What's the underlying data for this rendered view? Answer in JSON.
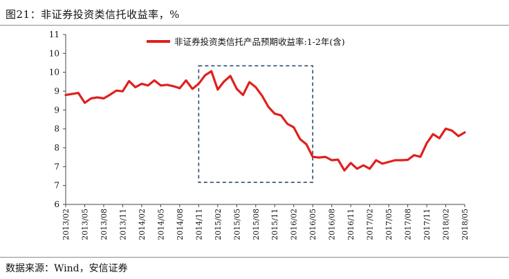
{
  "header": {
    "title": "图21：非证券投资类信托收益率，%"
  },
  "footer": {
    "source": "数据来源：Wind，安信证券"
  },
  "chart_data": {
    "type": "line",
    "title": "",
    "xlabel": "",
    "ylabel": "",
    "ylim": [
      6,
      11
    ],
    "y_tick_labels": [
      "6",
      "7",
      "7",
      "8",
      "8",
      "9",
      "9",
      "10",
      "10",
      "11"
    ],
    "x_tick_labels": [
      "2013/02",
      "2013/05",
      "2013/08",
      "2013/11",
      "2014/02",
      "2014/05",
      "2014/08",
      "2014/11",
      "2015/02",
      "2015/05",
      "2015/08",
      "2015/11",
      "2016/02",
      "2016/05",
      "2016/08",
      "2016/11",
      "2017/02",
      "2017/05",
      "2017/08",
      "2017/11",
      "2018/02",
      "2018/05"
    ],
    "legend_position": "top-center",
    "highlight_box": {
      "from": "2014/11",
      "to": "2016/05",
      "style": "dashed"
    },
    "series": [
      {
        "name": "非证券投资类信托产品预期收益率:1-2年(含)",
        "color": "#e0201d",
        "x": [
          "2013/02",
          "2013/03",
          "2013/04",
          "2013/05",
          "2013/06",
          "2013/07",
          "2013/08",
          "2013/09",
          "2013/10",
          "2013/11",
          "2013/12",
          "2014/01",
          "2014/02",
          "2014/03",
          "2014/04",
          "2014/05",
          "2014/06",
          "2014/07",
          "2014/08",
          "2014/09",
          "2014/10",
          "2014/11",
          "2014/12",
          "2015/01",
          "2015/02",
          "2015/03",
          "2015/04",
          "2015/05",
          "2015/06",
          "2015/07",
          "2015/08",
          "2015/09",
          "2015/10",
          "2015/11",
          "2015/12",
          "2016/01",
          "2016/02",
          "2016/03",
          "2016/04",
          "2016/05",
          "2016/06",
          "2016/07",
          "2016/08",
          "2016/09",
          "2016/10",
          "2016/11",
          "2016/12",
          "2017/01",
          "2017/02",
          "2017/03",
          "2017/04",
          "2017/05",
          "2017/06",
          "2017/07",
          "2017/08",
          "2017/09",
          "2017/10",
          "2017/11",
          "2017/12",
          "2018/01",
          "2018/02",
          "2018/03",
          "2018/04",
          "2018/05"
        ],
        "values": [
          9.22,
          9.25,
          9.28,
          8.99,
          9.12,
          9.15,
          9.12,
          9.23,
          9.35,
          9.33,
          9.63,
          9.45,
          9.55,
          9.5,
          9.65,
          9.5,
          9.52,
          9.48,
          9.42,
          9.65,
          9.4,
          9.55,
          9.8,
          9.92,
          9.38,
          9.62,
          9.78,
          9.4,
          9.22,
          9.6,
          9.45,
          9.2,
          8.87,
          8.67,
          8.62,
          8.37,
          8.27,
          7.92,
          7.77,
          7.4,
          7.38,
          7.4,
          7.3,
          7.32,
          7.0,
          7.22,
          7.05,
          7.15,
          7.05,
          7.3,
          7.2,
          7.25,
          7.3,
          7.3,
          7.31,
          7.45,
          7.4,
          7.8,
          8.07,
          7.95,
          8.23,
          8.17,
          8.01,
          8.12
        ]
      }
    ]
  }
}
